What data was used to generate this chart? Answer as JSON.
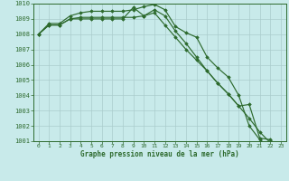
{
  "line1": [
    1008.0,
    1008.6,
    1008.6,
    1009.0,
    1009.1,
    1009.1,
    1009.1,
    1009.1,
    1009.1,
    1009.1,
    1009.2,
    1009.4,
    1008.6,
    1007.8,
    1007.0,
    1006.3,
    1005.6,
    1004.8,
    1004.1,
    1003.3,
    1002.5,
    1001.6,
    1000.9,
    1000.5
  ],
  "line2": [
    1008.0,
    1008.7,
    1008.7,
    1009.2,
    1009.4,
    1009.5,
    1009.5,
    1009.5,
    1009.5,
    1009.6,
    1009.8,
    1009.95,
    1009.6,
    1008.5,
    1008.1,
    1007.8,
    1006.5,
    1005.8,
    1005.2,
    1004.0,
    1002.0,
    1001.1,
    1000.6,
    1000.3
  ],
  "line3": [
    1008.0,
    1008.6,
    1008.6,
    1009.0,
    1009.0,
    1009.0,
    1009.0,
    1009.0,
    1009.0,
    1009.75,
    1009.2,
    1009.6,
    1009.2,
    1008.2,
    1007.4,
    1006.5,
    1005.6,
    1004.8,
    1004.1,
    1003.3,
    1003.4,
    1001.2,
    1001.1,
    1000.5
  ],
  "background_color": "#c8eaea",
  "grid_color": "#aacccc",
  "line_color": "#2d6a2d",
  "xlabel": "Graphe pression niveau de la mer (hPa)",
  "ylim": [
    1001,
    1010
  ],
  "xlim": [
    0,
    23
  ],
  "yticks": [
    1001,
    1002,
    1003,
    1004,
    1005,
    1006,
    1007,
    1008,
    1009,
    1010
  ],
  "xticks": [
    0,
    1,
    2,
    3,
    4,
    5,
    6,
    7,
    8,
    9,
    10,
    11,
    12,
    13,
    14,
    15,
    16,
    17,
    18,
    19,
    20,
    21,
    22,
    23
  ]
}
